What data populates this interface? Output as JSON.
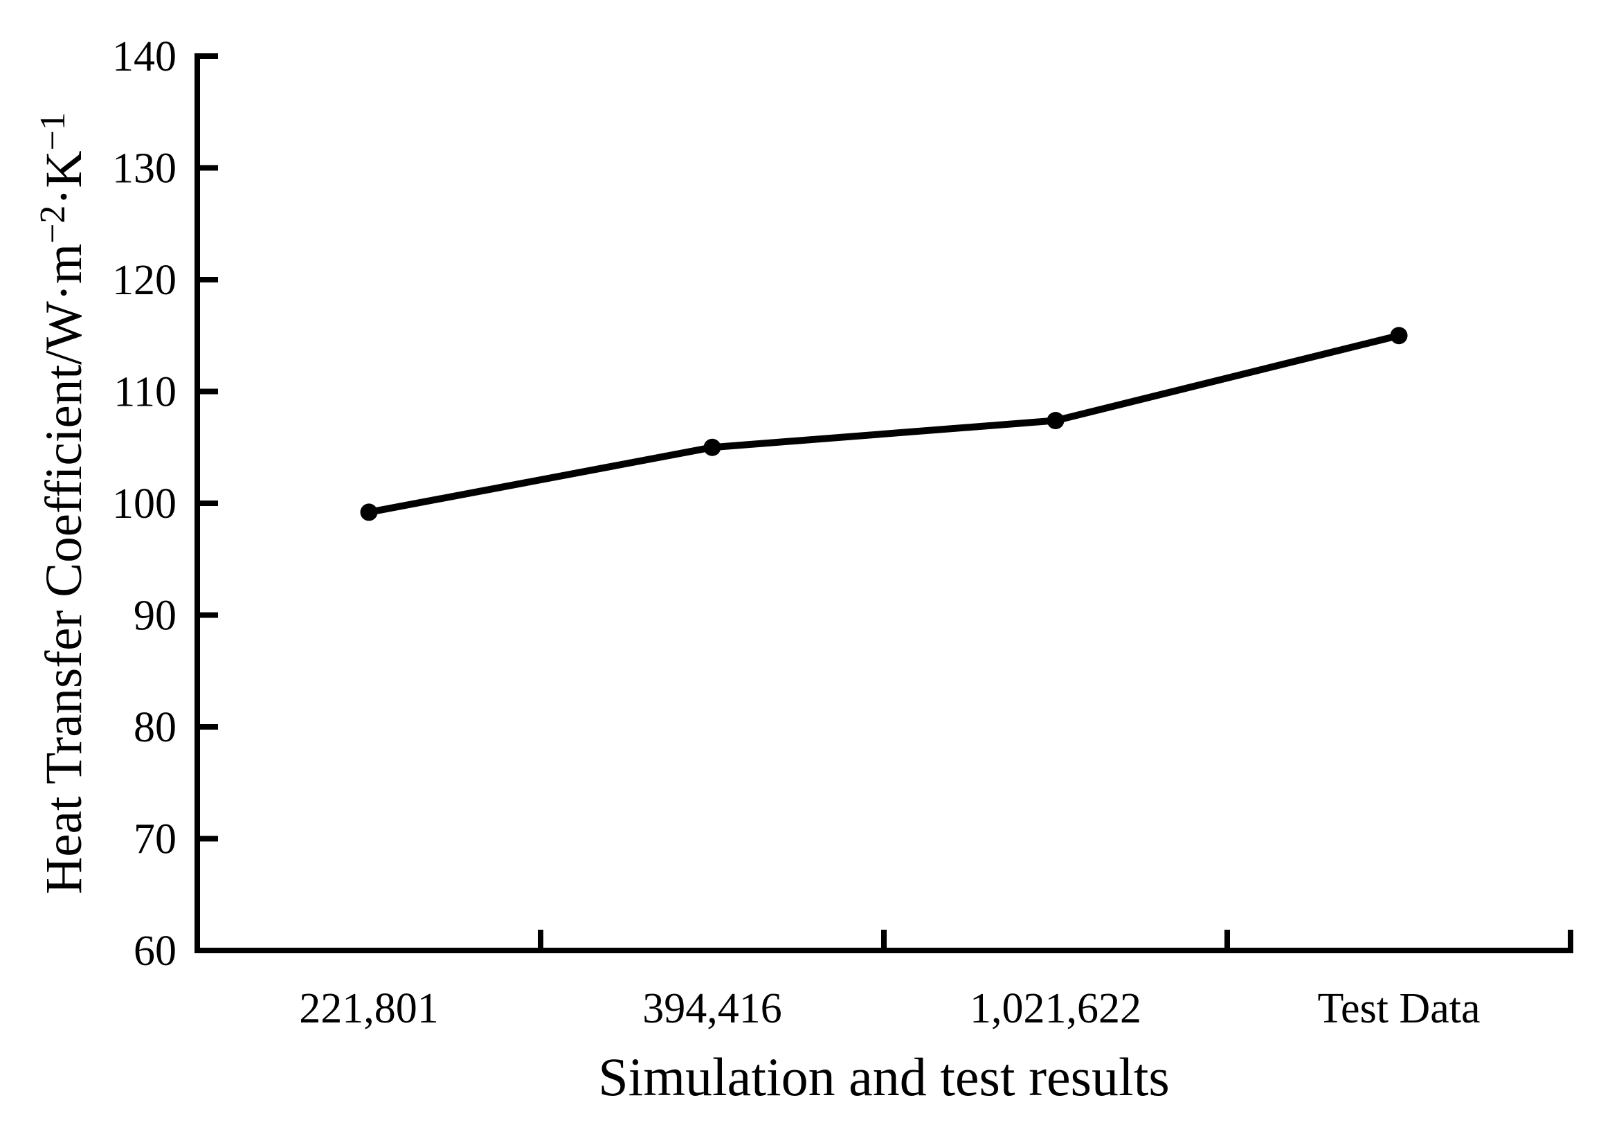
{
  "figure": {
    "background": "#ffffff",
    "ink_color": "#000000"
  },
  "chart_data": {
    "type": "line",
    "categories": [
      "221,801",
      "394,416",
      "1,021,622",
      "Test Data"
    ],
    "values": [
      99.2,
      105.0,
      107.4,
      115.0
    ],
    "xlabel": "Simulation and test results",
    "ylabel": "Heat Transfer Coefficient/W·m−2·K−1",
    "ylabel_parts": [
      {
        "text": "Heat Transfer Coefficient/W·m",
        "sup": false
      },
      {
        "text": "−2",
        "sup": true
      },
      {
        "text": "·K",
        "sup": false
      },
      {
        "text": "−1",
        "sup": true
      }
    ],
    "ylim": [
      60,
      140
    ],
    "yticks": [
      60,
      70,
      80,
      90,
      100,
      110,
      120,
      130,
      140
    ],
    "x_tick_style": "boundaries-between-categories",
    "grid": false,
    "legend": "none",
    "line_color": "#000000",
    "marker": "filled-circle",
    "marker_color": "#000000"
  }
}
